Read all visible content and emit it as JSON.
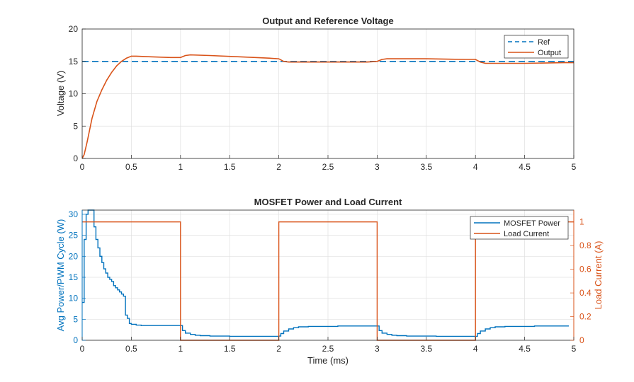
{
  "chart_data": [
    {
      "type": "line",
      "title": "Output and Reference Voltage",
      "xlabel": "",
      "ylabel": "Voltage (V)",
      "xlim": [
        0,
        5
      ],
      "ylim": [
        0,
        20
      ],
      "xticks": [
        0,
        0.5,
        1,
        1.5,
        2,
        2.5,
        3,
        3.5,
        4,
        4.5,
        5
      ],
      "xtick_labels": [
        "0",
        "0.5",
        "1",
        "1.5",
        "2",
        "2.5",
        "3",
        "3.5",
        "4",
        "4.5",
        "5"
      ],
      "yticks": [
        0,
        5,
        10,
        15,
        20
      ],
      "ytick_labels": [
        "0",
        "5",
        "10",
        "15",
        "20"
      ],
      "grid": true,
      "legend": "top-right",
      "series": [
        {
          "name": "Ref",
          "style": "dashed",
          "color": "#0072BD",
          "x": [
            0,
            5
          ],
          "y": [
            15,
            15
          ]
        },
        {
          "name": "Output",
          "style": "solid",
          "color": "#D95319",
          "x": [
            0,
            0.02,
            0.05,
            0.1,
            0.15,
            0.2,
            0.25,
            0.3,
            0.35,
            0.4,
            0.45,
            0.5,
            0.55,
            0.7,
            0.9,
            1.0,
            1.05,
            1.1,
            1.3,
            1.6,
            1.9,
            2.0,
            2.05,
            2.1,
            2.5,
            2.9,
            3.0,
            3.05,
            3.1,
            3.5,
            3.9,
            4.0,
            4.05,
            4.1,
            4.5,
            4.9,
            5.0
          ],
          "y": [
            0,
            0.6,
            2.5,
            6.2,
            8.8,
            10.6,
            12.1,
            13.3,
            14.3,
            15.0,
            15.5,
            15.8,
            15.8,
            15.7,
            15.6,
            15.6,
            15.9,
            16.0,
            15.9,
            15.7,
            15.5,
            15.4,
            15.0,
            14.9,
            14.9,
            14.9,
            15.0,
            15.3,
            15.4,
            15.4,
            15.3,
            15.3,
            14.9,
            14.7,
            14.7,
            14.8,
            14.8
          ]
        }
      ]
    },
    {
      "type": "line",
      "title": "MOSFET Power and Load Current",
      "xlabel": "Time (ms)",
      "ylabel_left": "Avg Power/PWM Cycle (W)",
      "ylabel_right": "Load Current (A)",
      "xlim": [
        0,
        5
      ],
      "ylim_left": [
        0,
        31
      ],
      "ylim_right": [
        0,
        1.1
      ],
      "xticks": [
        0,
        0.5,
        1,
        1.5,
        2,
        2.5,
        3,
        3.5,
        4,
        4.5,
        5
      ],
      "xtick_labels": [
        "0",
        "0.5",
        "1",
        "1.5",
        "2",
        "2.5",
        "3",
        "3.5",
        "4",
        "4.5",
        "5"
      ],
      "yticks_left": [
        0,
        5,
        10,
        15,
        20,
        25,
        30
      ],
      "ytick_labels_left": [
        "0",
        "5",
        "10",
        "15",
        "20",
        "25",
        "30"
      ],
      "yticks_right": [
        0,
        0.2,
        0.4,
        0.6,
        0.8,
        1
      ],
      "ytick_labels_right": [
        "0",
        "0.2",
        "0.4",
        "0.6",
        "0.8",
        "1"
      ],
      "grid": true,
      "legend": "top-right",
      "series": [
        {
          "name": "MOSFET Power",
          "axis": "left",
          "style": "step",
          "color": "#0072BD",
          "x": [
            0,
            0.02,
            0.04,
            0.06,
            0.08,
            0.1,
            0.12,
            0.14,
            0.16,
            0.18,
            0.2,
            0.22,
            0.24,
            0.26,
            0.28,
            0.3,
            0.32,
            0.34,
            0.36,
            0.38,
            0.4,
            0.42,
            0.44,
            0.46,
            0.48,
            0.5,
            0.55,
            0.6,
            0.8,
            1.0,
            1.02,
            1.05,
            1.1,
            1.15,
            1.2,
            1.3,
            1.5,
            1.8,
            2.0,
            2.02,
            2.05,
            2.1,
            2.15,
            2.2,
            2.3,
            2.6,
            3.0,
            3.02,
            3.05,
            3.1,
            3.15,
            3.2,
            3.3,
            3.6,
            4.0,
            4.02,
            4.05,
            4.1,
            4.15,
            4.2,
            4.3,
            4.6,
            4.95
          ],
          "y": [
            9,
            24,
            30,
            31,
            31,
            31,
            27,
            24,
            22,
            20,
            18.5,
            17,
            16,
            15,
            14.5,
            14,
            13,
            12.5,
            12,
            11.5,
            11,
            10.5,
            6,
            5.2,
            4,
            3.8,
            3.6,
            3.5,
            3.5,
            3.5,
            2.3,
            1.7,
            1.4,
            1.2,
            1.1,
            1.0,
            0.95,
            0.95,
            1.0,
            1.6,
            2.2,
            2.7,
            3.0,
            3.2,
            3.3,
            3.4,
            3.4,
            2.3,
            1.7,
            1.4,
            1.2,
            1.1,
            1.0,
            0.95,
            0.95,
            1.6,
            2.2,
            2.7,
            3.0,
            3.2,
            3.3,
            3.4,
            3.4
          ]
        },
        {
          "name": "Load Current",
          "axis": "right",
          "style": "step",
          "color": "#D95319",
          "x": [
            0,
            1,
            2,
            3,
            4,
            5
          ],
          "y": [
            1,
            0,
            1,
            0,
            1,
            1
          ]
        }
      ]
    }
  ]
}
